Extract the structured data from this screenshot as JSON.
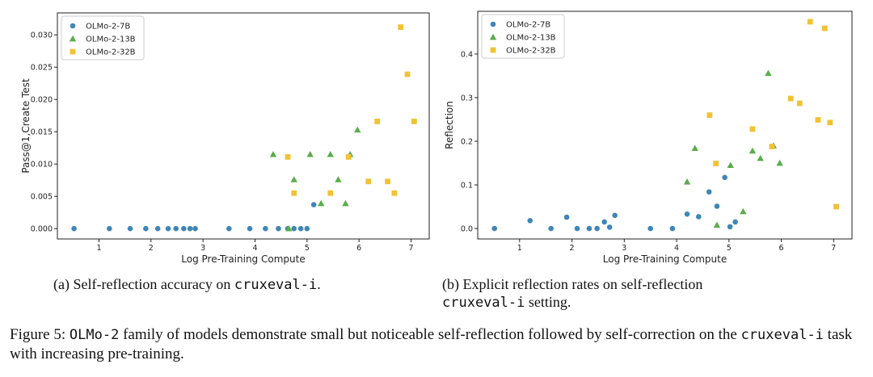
{
  "chart_data": [
    {
      "type": "scatter",
      "xlabel": "Log Pre-Training Compute",
      "ylabel": "Pass@1,Create Test",
      "xlim": [
        0.2,
        7.35
      ],
      "ylim": [
        -0.0016,
        0.0334
      ],
      "xticks": [
        1,
        2,
        3,
        4,
        5,
        6,
        7
      ],
      "yticks": [
        0.0,
        0.005,
        0.01,
        0.015,
        0.02,
        0.025,
        0.03
      ],
      "ytick_labels": [
        "0.000",
        "0.005",
        "0.010",
        "0.015",
        "0.020",
        "0.025",
        "0.030"
      ],
      "legend_position": "top-left",
      "series": [
        {
          "name": "OLMo-2-7B",
          "color": "#3f86b7",
          "marker": "circle",
          "points": [
            [
              0.52,
              0.0
            ],
            [
              1.2,
              0.0
            ],
            [
              1.6,
              0.0
            ],
            [
              1.9,
              0.0
            ],
            [
              2.13,
              0.0
            ],
            [
              2.33,
              0.0
            ],
            [
              2.48,
              0.0
            ],
            [
              2.63,
              0.0
            ],
            [
              2.75,
              0.0
            ],
            [
              2.85,
              0.0
            ],
            [
              3.5,
              0.0
            ],
            [
              3.9,
              0.0
            ],
            [
              4.2,
              0.0
            ],
            [
              4.45,
              0.0
            ],
            [
              4.63,
              0.0
            ],
            [
              4.75,
              0.0
            ],
            [
              4.88,
              0.0
            ],
            [
              5.0,
              0.0
            ],
            [
              5.13,
              0.0037
            ]
          ]
        },
        {
          "name": "OLMo-2-13B",
          "color": "#5aad4c",
          "marker": "triangle",
          "points": [
            [
              4.35,
              0.0115
            ],
            [
              4.65,
              0.0
            ],
            [
              4.75,
              0.0076
            ],
            [
              5.06,
              0.0115
            ],
            [
              5.27,
              0.0039
            ],
            [
              5.45,
              0.0115
            ],
            [
              5.6,
              0.0076
            ],
            [
              5.74,
              0.0039
            ],
            [
              5.83,
              0.0115
            ],
            [
              5.97,
              0.0153
            ]
          ]
        },
        {
          "name": "OLMo-2-32B",
          "color": "#f1c232",
          "marker": "square",
          "points": [
            [
              4.63,
              0.0111
            ],
            [
              4.75,
              0.0055
            ],
            [
              5.45,
              0.0055
            ],
            [
              5.8,
              0.0111
            ],
            [
              6.18,
              0.0073
            ],
            [
              6.35,
              0.0166
            ],
            [
              6.55,
              0.0073
            ],
            [
              6.68,
              0.0055
            ],
            [
              6.8,
              0.0312
            ],
            [
              6.93,
              0.0239
            ],
            [
              7.06,
              0.0166
            ]
          ]
        }
      ]
    },
    {
      "type": "scatter",
      "xlabel": "Log Pre-Training Compute",
      "ylabel": "Reflection",
      "xlim": [
        0.2,
        7.35
      ],
      "ylim": [
        -0.024,
        0.498
      ],
      "xticks": [
        1,
        2,
        3,
        4,
        5,
        6,
        7
      ],
      "yticks": [
        0.0,
        0.1,
        0.2,
        0.3,
        0.4
      ],
      "ytick_labels": [
        "0.0",
        "0.1",
        "0.2",
        "0.3",
        "0.4"
      ],
      "legend_position": "top-left",
      "series": [
        {
          "name": "OLMo-2-7B",
          "color": "#3f86b7",
          "marker": "circle",
          "points": [
            [
              0.52,
              0.0
            ],
            [
              1.2,
              0.018
            ],
            [
              1.6,
              0.0
            ],
            [
              1.9,
              0.026
            ],
            [
              2.1,
              0.0
            ],
            [
              2.33,
              0.0
            ],
            [
              2.48,
              0.0
            ],
            [
              2.62,
              0.015
            ],
            [
              2.72,
              0.003
            ],
            [
              2.82,
              0.03
            ],
            [
              3.5,
              0.0
            ],
            [
              3.92,
              0.0
            ],
            [
              4.2,
              0.033
            ],
            [
              4.42,
              0.027
            ],
            [
              4.62,
              0.084
            ],
            [
              4.77,
              0.051
            ],
            [
              4.92,
              0.117
            ],
            [
              5.02,
              0.004
            ],
            [
              5.12,
              0.015
            ]
          ]
        },
        {
          "name": "OLMo-2-13B",
          "color": "#5aad4c",
          "marker": "triangle",
          "points": [
            [
              4.2,
              0.107
            ],
            [
              4.35,
              0.184
            ],
            [
              4.77,
              0.008
            ],
            [
              5.03,
              0.145
            ],
            [
              5.27,
              0.039
            ],
            [
              5.45,
              0.178
            ],
            [
              5.6,
              0.161
            ],
            [
              5.75,
              0.356
            ],
            [
              5.85,
              0.19
            ],
            [
              5.97,
              0.15
            ]
          ]
        },
        {
          "name": "OLMo-2-32B",
          "color": "#f1c232",
          "marker": "square",
          "points": [
            [
              4.63,
              0.26
            ],
            [
              4.75,
              0.149
            ],
            [
              5.45,
              0.228
            ],
            [
              5.82,
              0.188
            ],
            [
              6.18,
              0.298
            ],
            [
              6.35,
              0.287
            ],
            [
              6.55,
              0.474
            ],
            [
              6.7,
              0.249
            ],
            [
              6.83,
              0.459
            ],
            [
              6.93,
              0.243
            ],
            [
              7.05,
              0.05
            ]
          ]
        }
      ]
    }
  ],
  "captions": {
    "a": {
      "prefix": "(a) Self-reflection accuracy on ",
      "code": "cruxeval-i",
      "suffix": "."
    },
    "b": {
      "line1": "(b) Explicit reflection rates on self-reflection",
      "code": "cruxeval-i",
      "suffix": " setting."
    }
  },
  "figure_caption": {
    "label": "Figure 5: ",
    "code1": "OLMo-2",
    "text1": " family of models demonstrate small but noticeable self-reflection followed by self-correction on the ",
    "code2": "cruxeval-i",
    "text2": " task with increasing pre-training."
  }
}
